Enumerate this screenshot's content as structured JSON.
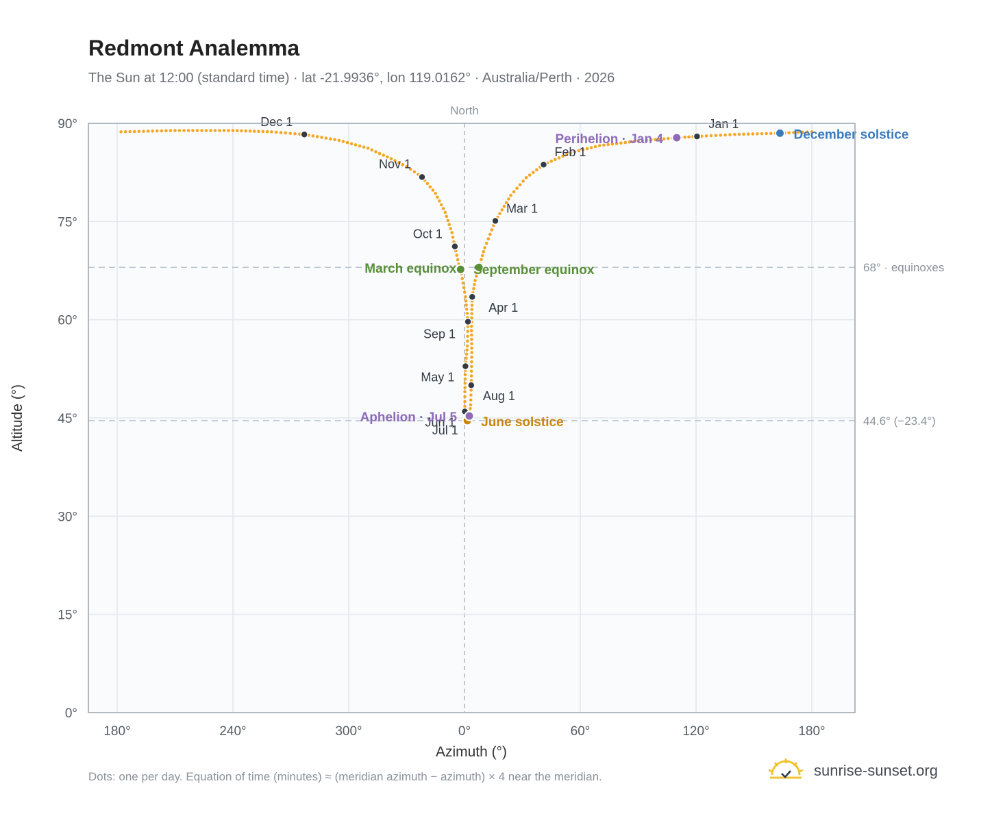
{
  "chart_data": {
    "type": "scatter",
    "title": "Redmont Analemma",
    "subtitle": "The Sun at 12:00 (standard time) · lat -21.9936°, lon 119.0162° · Australia/Perth · 2026",
    "xlabel": "Azimuth (°)",
    "ylabel": "Altitude (°)",
    "x_ticks": [
      "180°",
      "240°",
      "300°",
      "0°",
      "60°",
      "120°",
      "180°"
    ],
    "y_ticks": [
      "0°",
      "15°",
      "30°",
      "45°",
      "60°",
      "75°",
      "90°"
    ],
    "ylim": [
      0,
      90
    ],
    "north_label": "North",
    "grid": true,
    "reference_lines": [
      {
        "altitude": 68.0,
        "label": "68° · equinoxes"
      },
      {
        "altitude": 44.6,
        "label": "44.6° (−23.4°)"
      }
    ],
    "series_color": "#f5a623",
    "month_markers": [
      {
        "label": "Jan 1",
        "azimuth": 120.5,
        "altitude": 88.0
      },
      {
        "label": "Feb 1",
        "azimuth": 41.0,
        "altitude": 83.7
      },
      {
        "label": "Mar 1",
        "azimuth": 16.0,
        "altitude": 75.1
      },
      {
        "label": "Apr 1",
        "azimuth": 4.0,
        "altitude": 63.5
      },
      {
        "label": "May 1",
        "azimuth": 0.5,
        "altitude": 52.9
      },
      {
        "label": "Jun 1",
        "azimuth": 0.2,
        "altitude": 46.0
      },
      {
        "label": "Jul 1",
        "azimuth": 1.0,
        "altitude": 44.7
      },
      {
        "label": "Aug 1",
        "azimuth": 3.5,
        "altitude": 50.0
      },
      {
        "label": "Sep 1",
        "azimuth": 1.8,
        "altitude": 59.7
      },
      {
        "label": "Oct 1",
        "azimuth": -5.0,
        "altitude": 71.2
      },
      {
        "label": "Nov 1",
        "azimuth": -22.0,
        "altitude": 81.8
      },
      {
        "label": "Dec 1",
        "azimuth": -83.0,
        "altitude": 88.3
      }
    ],
    "events": [
      {
        "label": "December solstice",
        "azimuth": 163.5,
        "altitude": 88.5,
        "color": "#3a7abf"
      },
      {
        "label": "Perihelion · Jan 4",
        "azimuth": 110.0,
        "altitude": 87.8,
        "color": "#8e6bb8"
      },
      {
        "label": "March equinox",
        "azimuth": -2.0,
        "altitude": 67.7,
        "color": "#5a8f3a"
      },
      {
        "label": "September equinox",
        "azimuth": 7.5,
        "altitude": 68.0,
        "color": "#5a8f3a"
      },
      {
        "label": "June solstice",
        "azimuth": 1.5,
        "altitude": 44.6,
        "color": "#c8860d"
      },
      {
        "label": "Aphelion · Jul 5",
        "azimuth": 2.5,
        "altitude": 45.3,
        "color": "#8e6bb8"
      }
    ],
    "daily_curve": [
      [
        -178,
        88.7
      ],
      [
        -150,
        88.9
      ],
      [
        -120,
        88.9
      ],
      [
        -100,
        88.7
      ],
      [
        -83,
        88.3
      ],
      [
        -65,
        87.4
      ],
      [
        -50,
        86.2
      ],
      [
        -38,
        84.6
      ],
      [
        -30,
        83.4
      ],
      [
        -22,
        81.8
      ],
      [
        -15,
        79.3
      ],
      [
        -10,
        76.4
      ],
      [
        -6.5,
        73.3
      ],
      [
        -5,
        71.2
      ],
      [
        -3,
        68.5
      ],
      [
        -2,
        67.7
      ],
      [
        0.5,
        63.5
      ],
      [
        1.8,
        59.7
      ],
      [
        1.5,
        56
      ],
      [
        0.5,
        52.9
      ],
      [
        0.2,
        49
      ],
      [
        0.2,
        46
      ],
      [
        0.5,
        45.1
      ],
      [
        1.0,
        44.7
      ],
      [
        1.5,
        44.6
      ],
      [
        2.5,
        45.3
      ],
      [
        3.2,
        47.0
      ],
      [
        3.5,
        50.0
      ],
      [
        3.8,
        55
      ],
      [
        3.6,
        59
      ],
      [
        4.0,
        63.5
      ],
      [
        5.5,
        66.0
      ],
      [
        7.5,
        68.0
      ],
      [
        10.5,
        71.0
      ],
      [
        16.0,
        75.1
      ],
      [
        24,
        79.0
      ],
      [
        32,
        81.7
      ],
      [
        41,
        83.7
      ],
      [
        55,
        85.5
      ],
      [
        70,
        86.6
      ],
      [
        90,
        87.3
      ],
      [
        110,
        87.8
      ],
      [
        120.5,
        88.0
      ],
      [
        140,
        88.3
      ],
      [
        163.5,
        88.5
      ],
      [
        180,
        88.7
      ]
    ]
  },
  "footnote": "Dots: one per day. Equation of time (minutes) ≈ (meridian azimuth − azimuth) × 4 near the meridian.",
  "brand": {
    "name": "sunrise-sunset.org",
    "icon": "sun-logo-icon"
  }
}
